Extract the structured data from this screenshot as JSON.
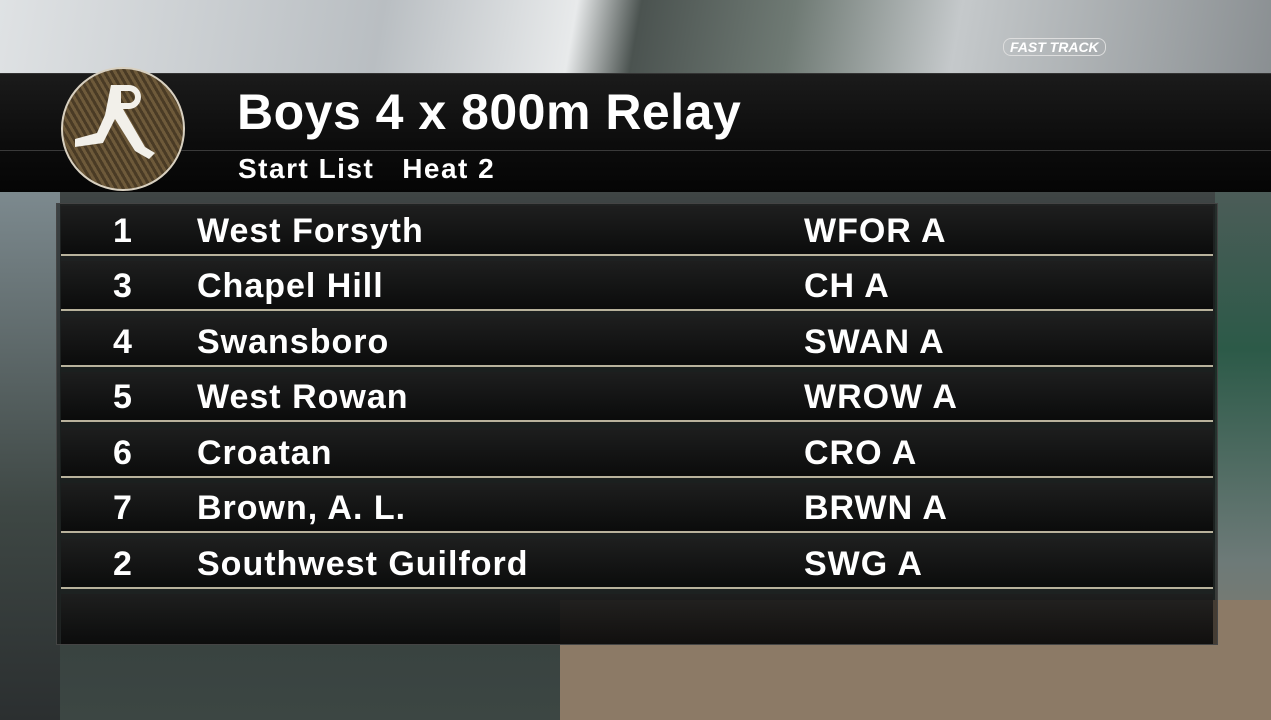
{
  "brand": "FAST TRACK",
  "header": {
    "title": "Boys 4 x 800m Relay",
    "subtitle": "Start List   Heat 2",
    "logo_icon": "runner-r-logo-icon"
  },
  "entries": [
    {
      "lane": "1",
      "team": "West Forsyth",
      "code": "WFOR A"
    },
    {
      "lane": "3",
      "team": "Chapel Hill",
      "code": "CH A"
    },
    {
      "lane": "4",
      "team": "Swansboro",
      "code": "SWAN A"
    },
    {
      "lane": "5",
      "team": "West Rowan",
      "code": "WROW A"
    },
    {
      "lane": "6",
      "team": "Croatan",
      "code": "CRO A"
    },
    {
      "lane": "7",
      "team": "Brown, A. L.",
      "code": "BRWN A"
    },
    {
      "lane": "2",
      "team": "Southwest Guilford",
      "code": "SWG A"
    }
  ]
}
